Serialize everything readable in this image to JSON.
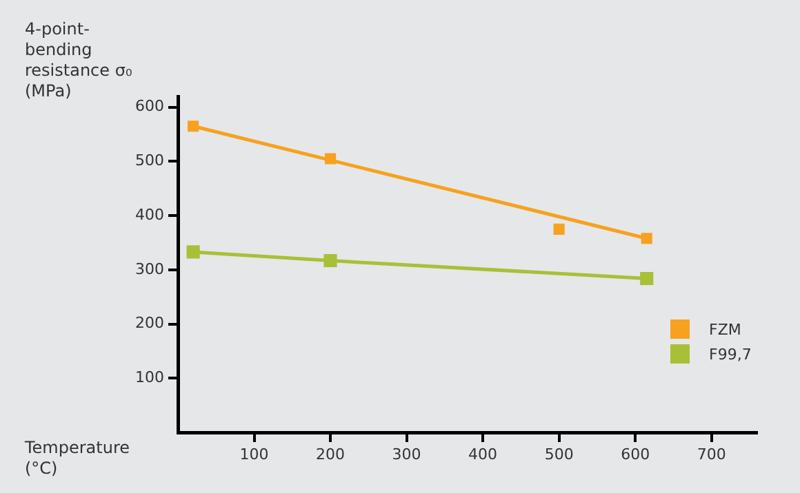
{
  "chart_data": {
    "type": "line",
    "xlabel": "Temperature (°C)",
    "ylabel": "4-point-bending resistance σ₀ (MPa)",
    "xlim": [
      0,
      760
    ],
    "xticks": [
      100,
      200,
      300,
      400,
      500,
      600,
      700
    ],
    "ylim": [
      0,
      620
    ],
    "yticks": [
      100,
      200,
      300,
      400,
      500,
      600
    ],
    "grid": false,
    "legend": "right",
    "marker": "square",
    "series": [
      {
        "name": "FZM",
        "type": "scatter",
        "color": "#f7a11f",
        "x": [
          20,
          200,
          500,
          615
        ],
        "values": [
          565,
          505,
          375,
          358
        ]
      },
      {
        "color": "#f7a11f",
        "marker": "none",
        "x": [
          20,
          615
        ],
        "values": [
          565,
          358
        ]
      },
      {
        "name": "F99,7",
        "color": "#a8c038",
        "x": [
          20,
          200,
          615
        ],
        "values": [
          333,
          317,
          284
        ]
      }
    ]
  }
}
